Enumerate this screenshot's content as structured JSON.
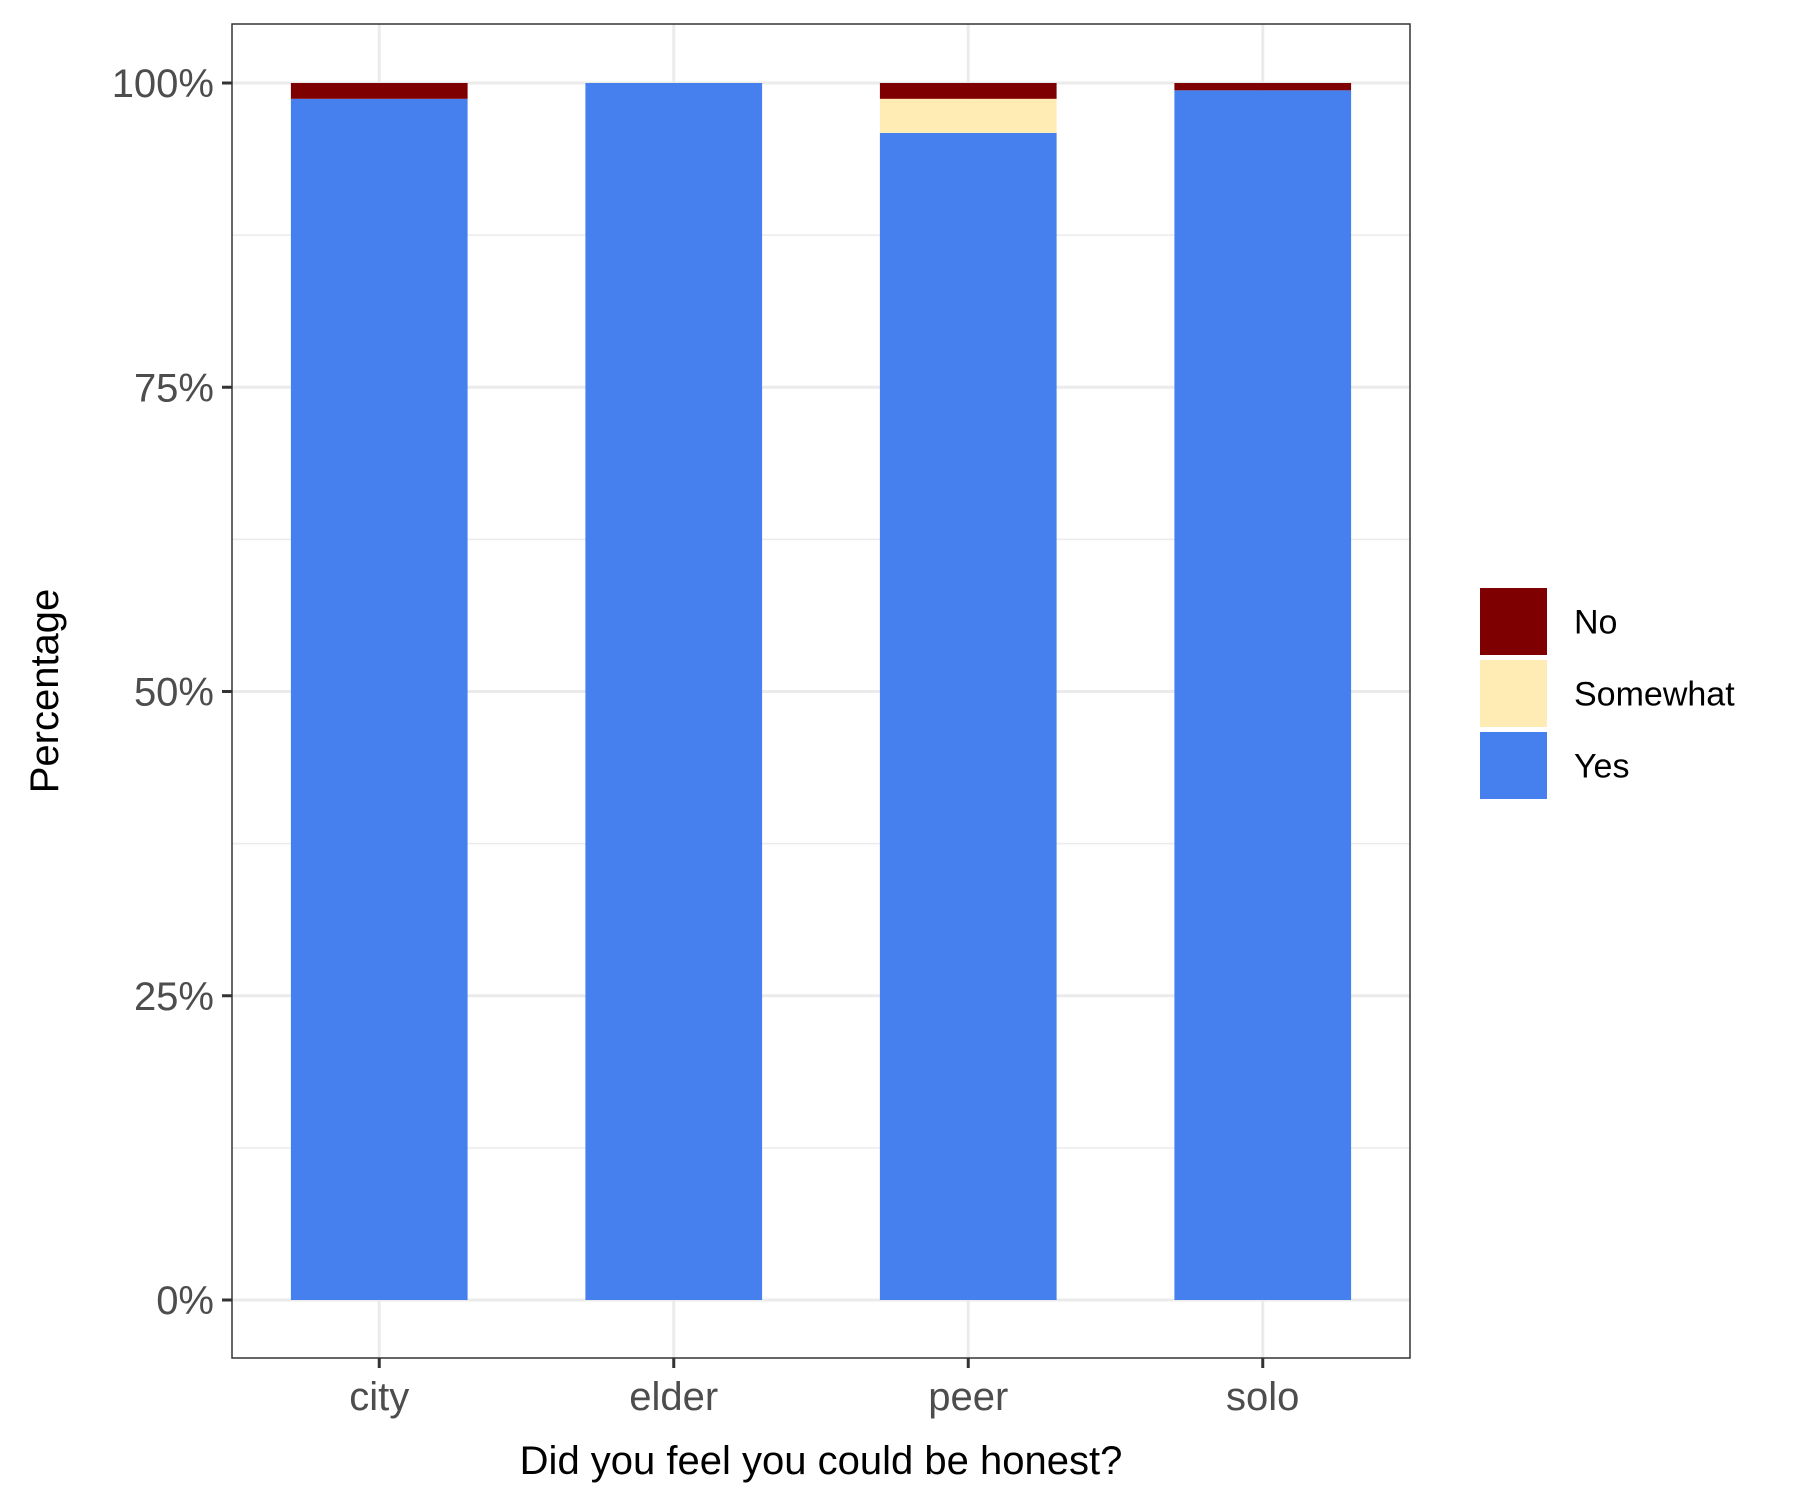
{
  "chart_data": {
    "type": "bar",
    "stacked": true,
    "categories": [
      "city",
      "elder",
      "peer",
      "solo"
    ],
    "series": [
      {
        "name": "Yes",
        "color": "#4580ee",
        "values": [
          98.7,
          100,
          95.9,
          99.4
        ]
      },
      {
        "name": "Somewhat",
        "color": "#ffecb5",
        "values": [
          0,
          0,
          2.8,
          0
        ]
      },
      {
        "name": "No",
        "color": "#7f0000",
        "values": [
          1.3,
          0,
          1.3,
          0.6
        ]
      }
    ],
    "xlabel": "Did you feel you could be honest?",
    "ylabel": "Percentage",
    "ylim": [
      0,
      100
    ],
    "yticks": [
      0,
      25,
      50,
      75,
      100
    ],
    "ytick_labels": [
      "0%",
      "25%",
      "50%",
      "75%",
      "100%"
    ],
    "grid": true,
    "legend_position": "right",
    "legend": [
      {
        "label": "No",
        "color": "#7f0000"
      },
      {
        "label": "Somewhat",
        "color": "#ffecb5"
      },
      {
        "label": "Yes",
        "color": "#4580ee"
      }
    ]
  }
}
